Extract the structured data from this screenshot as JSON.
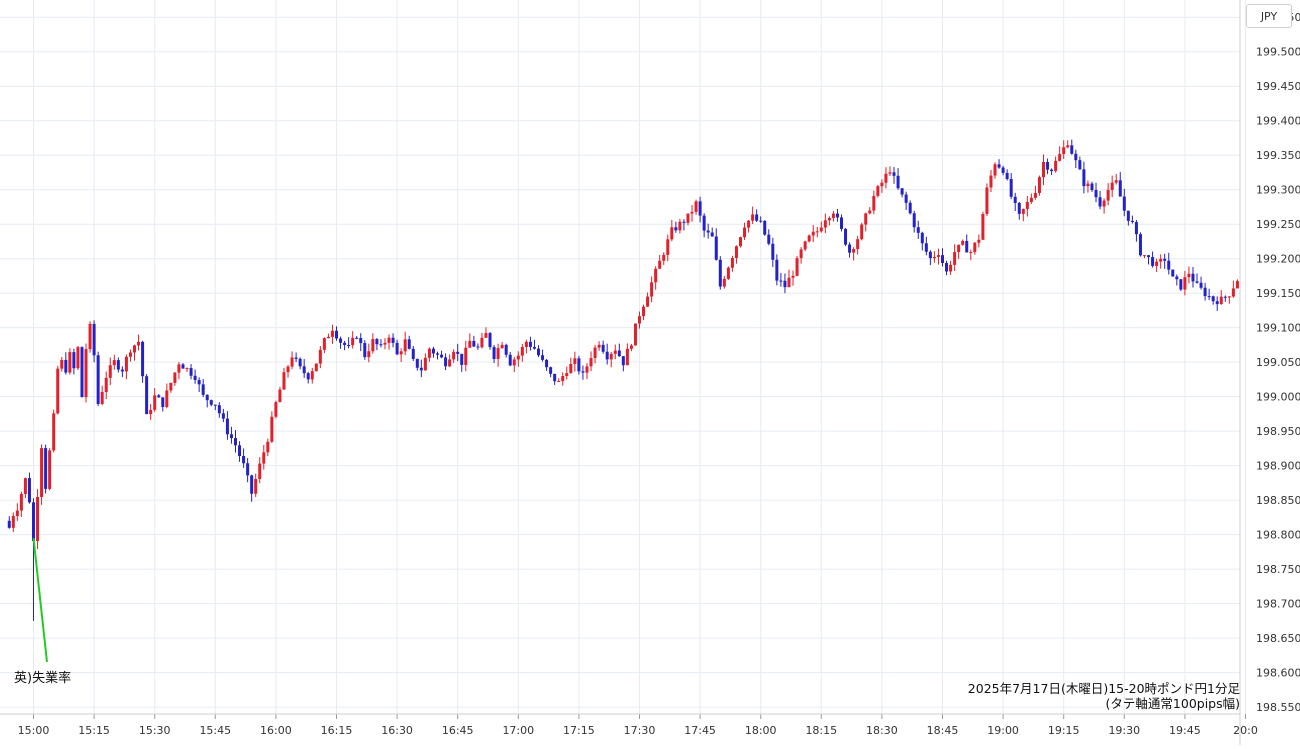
{
  "currency_label": "JPY",
  "caption": {
    "line1": "2025年7月17日(木曜日)15-20時ポンド円1分足",
    "line2": "(タテ軸通常100pips幅)"
  },
  "colors": {
    "bull": "#e0202a",
    "bear": "#2222c8",
    "grid": "#e6ecf2",
    "annotation_line": "#22cc22"
  },
  "chart_data": {
    "type": "candlestick",
    "interval": "1m",
    "ylim": [
      198.54,
      199.575
    ],
    "y_ticks": [
      "198.550",
      "198.600",
      "198.650",
      "198.700",
      "198.750",
      "198.800",
      "198.850",
      "198.900",
      "198.950",
      "199.000",
      "199.050",
      "199.100",
      "199.150",
      "199.200",
      "199.250",
      "199.300",
      "199.350",
      "199.400",
      "199.450",
      "199.500",
      "199.550"
    ],
    "x_tick_labels": [
      "15:00",
      "15:15",
      "15:30",
      "15:45",
      "16:00",
      "16:15",
      "16:30",
      "16:45",
      "17:00",
      "17:15",
      "17:30",
      "17:45",
      "18:00",
      "18:15",
      "18:30",
      "18:45",
      "19:00",
      "19:15",
      "19:30",
      "19:45",
      "20:0"
    ],
    "x_ticks_minutes": [
      0,
      15,
      30,
      45,
      60,
      75,
      90,
      105,
      120,
      135,
      150,
      165,
      180,
      195,
      210,
      225,
      240,
      255,
      270,
      285,
      300
    ],
    "annotation": {
      "text": "英)失業率",
      "time_minutes": 0
    },
    "path_start": [
      -7,
      198.82
    ],
    "keypoints": [
      [
        -6,
        198.81
      ],
      [
        -5,
        198.83
      ],
      [
        -4,
        198.84
      ],
      [
        -3,
        198.86
      ],
      [
        -2,
        198.88
      ],
      [
        -1,
        198.85
      ],
      [
        0,
        198.79
      ],
      [
        1,
        198.86
      ],
      [
        2,
        198.93
      ],
      [
        3,
        198.87
      ],
      [
        4,
        198.92
      ],
      [
        5,
        198.97
      ],
      [
        6,
        199.04
      ],
      [
        7,
        199.05
      ],
      [
        8,
        199.04
      ],
      [
        9,
        199.06
      ],
      [
        10,
        199.04
      ],
      [
        11,
        199.07
      ],
      [
        12,
        199.0
      ],
      [
        13,
        199.07
      ],
      [
        14,
        199.1
      ],
      [
        15,
        199.06
      ],
      [
        16,
        198.99
      ],
      [
        18,
        199.03
      ],
      [
        20,
        199.05
      ],
      [
        22,
        199.04
      ],
      [
        24,
        199.07
      ],
      [
        26,
        199.08
      ],
      [
        27,
        199.03
      ],
      [
        28,
        198.97
      ],
      [
        30,
        199.0
      ],
      [
        32,
        198.99
      ],
      [
        34,
        199.02
      ],
      [
        36,
        199.05
      ],
      [
        38,
        199.04
      ],
      [
        40,
        199.03
      ],
      [
        42,
        199.0
      ],
      [
        45,
        198.99
      ],
      [
        48,
        198.95
      ],
      [
        50,
        198.93
      ],
      [
        52,
        198.9
      ],
      [
        54,
        198.86
      ],
      [
        56,
        198.9
      ],
      [
        58,
        198.94
      ],
      [
        60,
        198.99
      ],
      [
        62,
        199.03
      ],
      [
        64,
        199.06
      ],
      [
        66,
        199.04
      ],
      [
        68,
        199.03
      ],
      [
        70,
        199.05
      ],
      [
        72,
        199.08
      ],
      [
        74,
        199.1
      ],
      [
        76,
        199.08
      ],
      [
        78,
        199.07
      ],
      [
        80,
        199.09
      ],
      [
        82,
        199.06
      ],
      [
        84,
        199.08
      ],
      [
        86,
        199.07
      ],
      [
        88,
        199.09
      ],
      [
        90,
        199.06
      ],
      [
        92,
        199.08
      ],
      [
        94,
        199.05
      ],
      [
        96,
        199.04
      ],
      [
        98,
        199.07
      ],
      [
        100,
        199.06
      ],
      [
        102,
        199.05
      ],
      [
        104,
        199.07
      ],
      [
        106,
        199.05
      ],
      [
        108,
        199.08
      ],
      [
        110,
        199.07
      ],
      [
        112,
        199.09
      ],
      [
        114,
        199.06
      ],
      [
        116,
        199.08
      ],
      [
        118,
        199.05
      ],
      [
        120,
        199.06
      ],
      [
        122,
        199.08
      ],
      [
        124,
        199.07
      ],
      [
        126,
        199.05
      ],
      [
        128,
        199.03
      ],
      [
        130,
        199.02
      ],
      [
        132,
        199.04
      ],
      [
        134,
        199.05
      ],
      [
        136,
        199.03
      ],
      [
        138,
        199.06
      ],
      [
        140,
        199.08
      ],
      [
        142,
        199.06
      ],
      [
        144,
        199.07
      ],
      [
        146,
        199.05
      ],
      [
        148,
        199.08
      ],
      [
        150,
        199.12
      ],
      [
        152,
        199.15
      ],
      [
        154,
        199.18
      ],
      [
        156,
        199.21
      ],
      [
        158,
        199.24
      ],
      [
        160,
        199.25
      ],
      [
        162,
        199.26
      ],
      [
        164,
        199.28
      ],
      [
        166,
        199.24
      ],
      [
        168,
        199.23
      ],
      [
        170,
        199.16
      ],
      [
        172,
        199.19
      ],
      [
        174,
        199.22
      ],
      [
        176,
        199.25
      ],
      [
        178,
        199.26
      ],
      [
        180,
        199.25
      ],
      [
        182,
        199.22
      ],
      [
        184,
        199.17
      ],
      [
        186,
        199.16
      ],
      [
        188,
        199.18
      ],
      [
        190,
        199.21
      ],
      [
        192,
        199.23
      ],
      [
        194,
        199.24
      ],
      [
        196,
        199.26
      ],
      [
        198,
        199.27
      ],
      [
        200,
        199.24
      ],
      [
        202,
        199.21
      ],
      [
        204,
        199.23
      ],
      [
        206,
        199.26
      ],
      [
        208,
        199.29
      ],
      [
        210,
        199.31
      ],
      [
        212,
        199.33
      ],
      [
        214,
        199.3
      ],
      [
        216,
        199.28
      ],
      [
        218,
        199.25
      ],
      [
        220,
        199.22
      ],
      [
        222,
        199.2
      ],
      [
        224,
        199.21
      ],
      [
        226,
        199.18
      ],
      [
        228,
        199.21
      ],
      [
        230,
        199.22
      ],
      [
        232,
        199.21
      ],
      [
        234,
        199.23
      ],
      [
        236,
        199.3
      ],
      [
        238,
        199.34
      ],
      [
        240,
        199.33
      ],
      [
        242,
        199.29
      ],
      [
        244,
        199.26
      ],
      [
        246,
        199.28
      ],
      [
        248,
        199.3
      ],
      [
        250,
        199.34
      ],
      [
        252,
        199.33
      ],
      [
        254,
        199.35
      ],
      [
        256,
        199.37
      ],
      [
        258,
        199.34
      ],
      [
        260,
        199.31
      ],
      [
        262,
        199.3
      ],
      [
        264,
        199.28
      ],
      [
        266,
        199.3
      ],
      [
        268,
        199.31
      ],
      [
        270,
        199.27
      ],
      [
        272,
        199.25
      ],
      [
        274,
        199.21
      ],
      [
        276,
        199.2
      ],
      [
        278,
        199.19
      ],
      [
        280,
        199.2
      ],
      [
        282,
        199.17
      ],
      [
        284,
        199.16
      ],
      [
        286,
        199.18
      ],
      [
        288,
        199.16
      ],
      [
        290,
        199.15
      ],
      [
        292,
        199.14
      ],
      [
        294,
        199.14
      ],
      [
        296,
        199.15
      ],
      [
        298,
        199.17
      ],
      [
        300,
        199.19
      ]
    ]
  }
}
